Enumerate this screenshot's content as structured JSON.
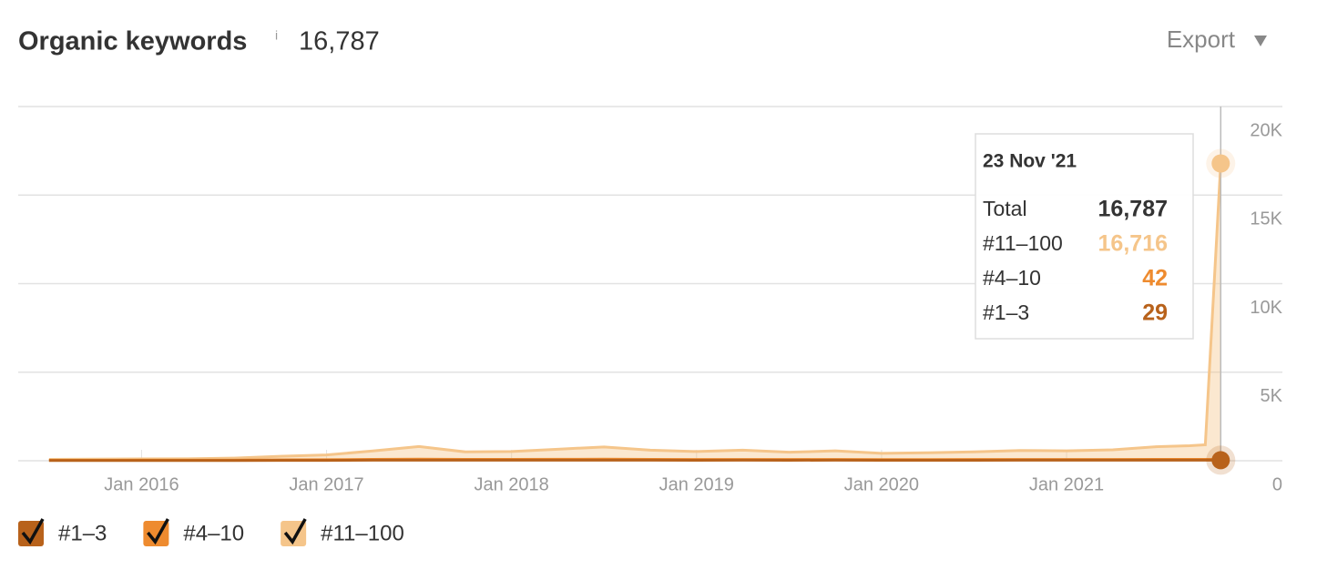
{
  "header": {
    "title": "Organic keywords",
    "info": "i",
    "total": "16,787",
    "export": "Export"
  },
  "chart_data": {
    "type": "stacked-area",
    "x": [
      "2015-07",
      "2015-10",
      "2016-01",
      "2016-04",
      "2016-07",
      "2016-10",
      "2017-01",
      "2017-04",
      "2017-07",
      "2017-10",
      "2018-01",
      "2018-04",
      "2018-07",
      "2018-10",
      "2019-01",
      "2019-04",
      "2019-07",
      "2019-10",
      "2020-01",
      "2020-04",
      "2020-07",
      "2020-10",
      "2021-01",
      "2021-04",
      "2021-07",
      "2021-09",
      "2021-10",
      "2021-11"
    ],
    "series": [
      {
        "name": "#1–3",
        "color": "#b8621b",
        "values": [
          10,
          10,
          12,
          12,
          15,
          20,
          22,
          30,
          35,
          30,
          30,
          32,
          35,
          30,
          28,
          30,
          28,
          30,
          26,
          26,
          28,
          30,
          30,
          30,
          32,
          30,
          30,
          29
        ]
      },
      {
        "name": "#4–10",
        "color": "#ee8b2f",
        "values": [
          15,
          15,
          18,
          18,
          20,
          30,
          35,
          45,
          55,
          45,
          45,
          50,
          55,
          45,
          40,
          42,
          40,
          42,
          38,
          38,
          40,
          42,
          42,
          42,
          45,
          44,
          44,
          42
        ]
      },
      {
        "name": "#11–100",
        "color": "#f5c58a",
        "values": [
          55,
          65,
          70,
          80,
          115,
          200,
          273,
          475,
          710,
          425,
          445,
          568,
          690,
          525,
          452,
          528,
          412,
          488,
          356,
          386,
          432,
          508,
          488,
          548,
          723,
          776,
          826,
          16716
        ]
      }
    ],
    "xlim": [
      "2015-05",
      "2022-03"
    ],
    "xticks": [
      {
        "value": "2016-01",
        "label": "Jan 2016"
      },
      {
        "value": "2017-01",
        "label": "Jan 2017"
      },
      {
        "value": "2018-01",
        "label": "Jan 2018"
      },
      {
        "value": "2019-01",
        "label": "Jan 2019"
      },
      {
        "value": "2020-01",
        "label": "Jan 2020"
      },
      {
        "value": "2021-01",
        "label": "Jan 2021"
      }
    ],
    "ylim": [
      0,
      20000
    ],
    "yticks": [
      0,
      {
        "value": 5000,
        "label": "5K"
      },
      {
        "value": 10000,
        "label": "10K"
      },
      {
        "value": 15000,
        "label": "15K"
      },
      {
        "value": 20000,
        "label": "20K"
      }
    ],
    "grid": true,
    "tooltip": {
      "date": "23 Nov '21",
      "total_name": "Total",
      "total": {
        "value": 16787,
        "label": "16,787"
      },
      "values": [
        29,
        42,
        {
          "value": 16716,
          "label": "16,716"
        }
      ]
    }
  }
}
